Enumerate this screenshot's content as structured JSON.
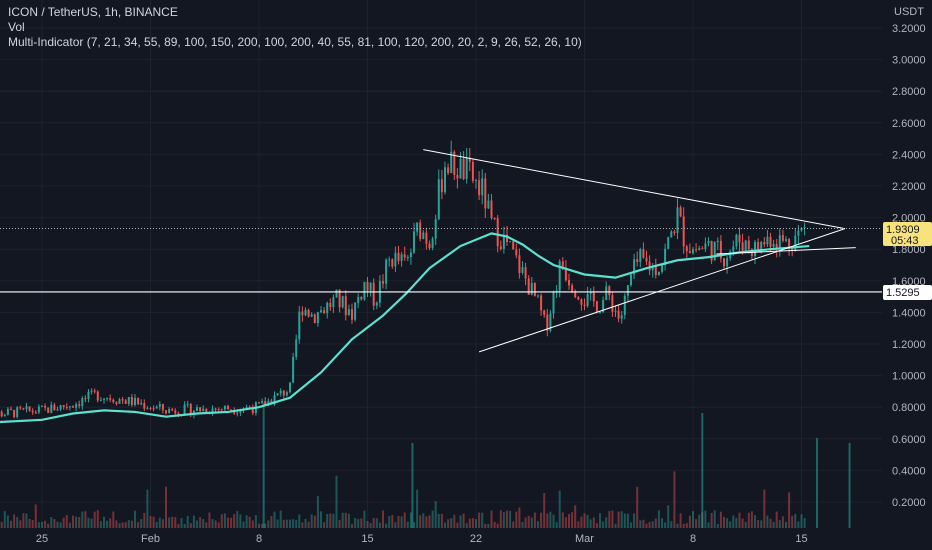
{
  "legend": {
    "symbol": "ICON / TetherUS, 1h, BINANCE",
    "vol": "Vol",
    "indicator": "Multi-Indicator (7, 21, 34, 55, 89, 100, 150, 200, 100, 200, 40, 55, 81, 100, 120, 200, 20, 2, 9, 26, 52, 26, 10)"
  },
  "colors": {
    "background": "#131722",
    "grid": "#1e222d",
    "up": "#26a69a",
    "down": "#ef5350",
    "ma": "#5ce1d0",
    "trendline": "#ffffff",
    "current_badge": "#f7e27c",
    "level_badge": "#ffffff"
  },
  "chart_data": {
    "type": "candlestick",
    "y_unit": "USDT",
    "ylim": [
      0.08,
      3.3
    ],
    "y_ticks": [
      "3.2000",
      "3.0000",
      "2.8000",
      "2.6000",
      "2.4000",
      "2.2000",
      "2.0000",
      "1.8000",
      "1.6000",
      "1.4000",
      "1.2000",
      "1.0000",
      "0.8000",
      "0.6000",
      "0.4000",
      "0.2000"
    ],
    "x_ticks": [
      "25",
      "Feb",
      "8",
      "15",
      "22",
      "Mar",
      "8",
      "15"
    ],
    "x_tick_day_index": [
      0,
      7,
      14,
      21,
      28,
      35,
      42,
      49
    ],
    "x_range_days": [
      -4,
      55
    ],
    "price_path_days": [
      -4,
      0,
      2,
      3.5,
      6,
      8,
      14,
      16,
      16.7,
      17.5,
      19,
      20,
      20.8,
      21.5,
      22.5,
      23.5,
      24.3,
      25,
      26,
      27.5,
      28.5,
      29,
      30,
      31,
      32,
      32.5,
      33.5,
      34,
      35,
      36,
      36.5,
      37.3,
      38,
      38.5,
      39.5,
      40,
      41,
      41.5,
      42,
      43,
      44,
      45,
      46,
      47,
      48,
      49.3
    ],
    "price_path": [
      0.75,
      0.78,
      0.82,
      0.88,
      0.83,
      0.78,
      0.8,
      0.92,
      1.45,
      1.38,
      1.48,
      1.4,
      1.58,
      1.48,
      1.75,
      1.7,
      1.95,
      1.85,
      2.35,
      2.28,
      2.15,
      1.95,
      1.83,
      1.65,
      1.45,
      1.3,
      1.72,
      1.62,
      1.48,
      1.45,
      1.52,
      1.35,
      1.62,
      1.73,
      1.68,
      1.72,
      2.02,
      1.85,
      1.8,
      1.82,
      1.76,
      1.86,
      1.8,
      1.88,
      1.84,
      1.93
    ],
    "ma_days": [
      -4,
      0,
      2,
      4,
      6,
      8,
      10,
      12,
      14,
      16,
      18,
      20,
      22,
      23.5,
      25,
      27,
      29,
      30,
      31,
      32,
      33,
      35,
      37,
      39,
      41,
      43,
      45,
      47,
      49.5
    ],
    "ma_values": [
      0.7,
      0.72,
      0.76,
      0.78,
      0.77,
      0.74,
      0.76,
      0.77,
      0.8,
      0.86,
      1.02,
      1.23,
      1.38,
      1.52,
      1.68,
      1.82,
      1.9,
      1.88,
      1.83,
      1.76,
      1.7,
      1.64,
      1.62,
      1.68,
      1.73,
      1.75,
      1.78,
      1.8,
      1.82
    ],
    "trendlines": [
      {
        "start": [
          24.6,
          2.43
        ],
        "end": [
          51.8,
          1.93
        ]
      },
      {
        "start": [
          28.2,
          1.15
        ],
        "end": [
          51.8,
          1.93
        ]
      },
      {
        "start": [
          43.5,
          1.77
        ],
        "end": [
          52.5,
          1.81
        ]
      }
    ],
    "horizontal_line": 1.5295,
    "current_price": 1.9309,
    "current_price_label": "1.9309",
    "countdown_label": "05:43",
    "level_label": "1.5295"
  }
}
